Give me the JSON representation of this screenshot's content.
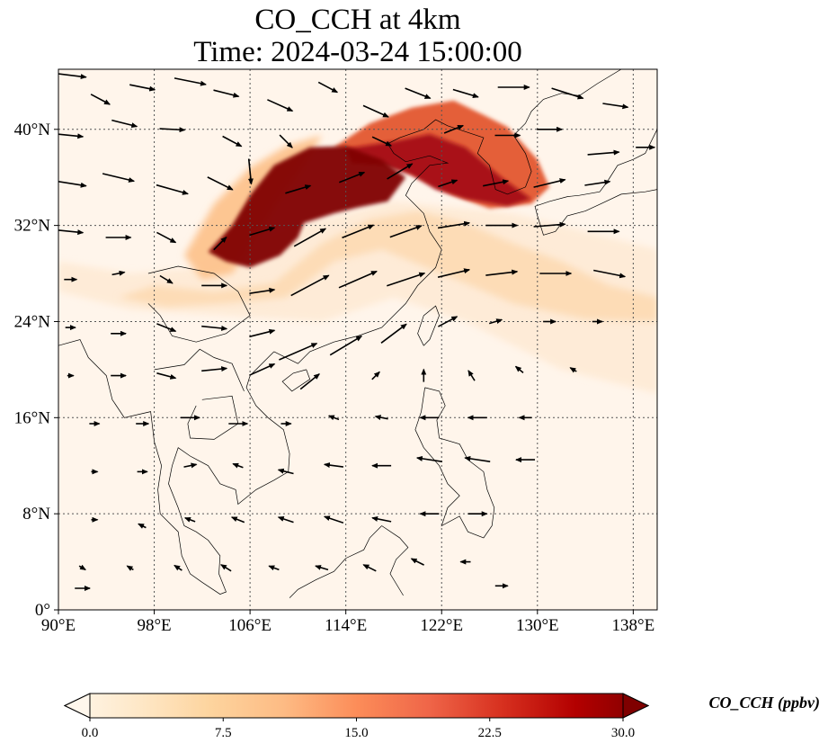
{
  "title": {
    "line1": "CO_CCH at 4km",
    "line2": "Time: 2024-03-24 15:00:00"
  },
  "map": {
    "projection": "PlateCarree",
    "lon_range": [
      90,
      140
    ],
    "lat_range": [
      0,
      45
    ],
    "gridlines": true,
    "x_ticks": [
      {
        "value": 90,
        "label": "90°E"
      },
      {
        "value": 98,
        "label": "98°E"
      },
      {
        "value": 106,
        "label": "106°E"
      },
      {
        "value": 114,
        "label": "114°E"
      },
      {
        "value": 122,
        "label": "122°E"
      },
      {
        "value": 130,
        "label": "130°E"
      },
      {
        "value": 138,
        "label": "138°E"
      }
    ],
    "y_ticks": [
      {
        "value": 0,
        "label": "0°"
      },
      {
        "value": 8,
        "label": "8°N"
      },
      {
        "value": 16,
        "label": "16°N"
      },
      {
        "value": 24,
        "label": "24°N"
      },
      {
        "value": 32,
        "label": "32°N"
      },
      {
        "value": 40,
        "label": "40°N"
      }
    ],
    "background_color": "#fff5eb",
    "plumes": [
      {
        "name": "core-plume",
        "level": 30,
        "color": "#7f0000",
        "polygon": [
          [
            102.5,
            29.8
          ],
          [
            104.5,
            32
          ],
          [
            106,
            34.5
          ],
          [
            108,
            37
          ],
          [
            111,
            38.5
          ],
          [
            114,
            38.6
          ],
          [
            117,
            37.5
          ],
          [
            119,
            36
          ],
          [
            117.5,
            34
          ],
          [
            115,
            33.5
          ],
          [
            113,
            33
          ],
          [
            110.5,
            32.2
          ],
          [
            110,
            31
          ],
          [
            108.5,
            29.5
          ],
          [
            106,
            28.5
          ],
          [
            104,
            29
          ],
          [
            102.5,
            29.8
          ]
        ]
      },
      {
        "name": "east-plume",
        "level": 27,
        "color": "#a50f15",
        "polygon": [
          [
            114,
            38.4
          ],
          [
            118,
            39
          ],
          [
            121,
            39.6
          ],
          [
            124,
            38.5
          ],
          [
            127,
            36
          ],
          [
            129.5,
            34.2
          ],
          [
            127.5,
            33.6
          ],
          [
            124,
            34.2
          ],
          [
            121.5,
            35
          ],
          [
            119.5,
            36.2
          ],
          [
            117,
            37
          ],
          [
            114.5,
            37.2
          ]
        ]
      },
      {
        "name": "north-edge",
        "level": 18,
        "color": "#e3562f",
        "polygon": [
          [
            113,
            38.5
          ],
          [
            116,
            40.5
          ],
          [
            119.5,
            41.8
          ],
          [
            123,
            42.4
          ],
          [
            125.5,
            41.2
          ],
          [
            127.5,
            40.2
          ],
          [
            130,
            37.5
          ],
          [
            131,
            35.2
          ],
          [
            129.5,
            33.8
          ],
          [
            126,
            33.4
          ],
          [
            123,
            34.5
          ],
          [
            119,
            36.5
          ],
          [
            116,
            37.8
          ]
        ]
      },
      {
        "name": "west-halo",
        "level": 9,
        "color": "#fdc38d",
        "polygon": [
          [
            100.5,
            29.5
          ],
          [
            103,
            33.8
          ],
          [
            106,
            36.8
          ],
          [
            109,
            38.6
          ],
          [
            112,
            39.5
          ],
          [
            110.5,
            37
          ],
          [
            108,
            33.5
          ],
          [
            106.5,
            31
          ],
          [
            104.5,
            28
          ],
          [
            102,
            27.5
          ]
        ]
      },
      {
        "name": "south-halo",
        "level": 6,
        "color": "#fdd9b0",
        "polygon": [
          [
            98,
            27
          ],
          [
            103,
            26.5
          ],
          [
            108,
            27.2
          ],
          [
            112,
            30.5
          ],
          [
            116,
            32.5
          ],
          [
            120,
            33.2
          ],
          [
            124,
            32.2
          ],
          [
            128,
            30.5
          ],
          [
            132,
            29
          ],
          [
            136,
            27
          ],
          [
            140,
            26
          ],
          [
            140,
            24
          ],
          [
            134,
            24.2
          ],
          [
            128,
            25.5
          ],
          [
            122,
            28
          ],
          [
            117,
            30
          ],
          [
            113,
            29
          ],
          [
            109,
            26
          ],
          [
            104,
            25.5
          ],
          [
            99,
            25.2
          ],
          [
            95,
            26
          ]
        ]
      },
      {
        "name": "far-haze",
        "level": 3,
        "color": "#feead4",
        "polygon": [
          [
            90,
            29
          ],
          [
            96,
            28
          ],
          [
            102,
            28.5
          ],
          [
            110,
            32
          ],
          [
            118,
            34
          ],
          [
            128,
            33
          ],
          [
            140,
            30
          ],
          [
            140,
            18
          ],
          [
            132,
            20
          ],
          [
            124,
            24
          ],
          [
            118,
            26
          ],
          [
            112,
            24
          ],
          [
            104,
            24.5
          ],
          [
            96,
            25
          ],
          [
            90,
            26.5
          ]
        ]
      }
    ],
    "wind_vectors": [
      {
        "lon": 91.0,
        "lat": 44.5,
        "u": 2.5,
        "v": -0.3
      },
      {
        "lon": 93.5,
        "lat": 42.5,
        "u": 1.5,
        "v": -0.8
      },
      {
        "lon": 97.0,
        "lat": 43.5,
        "u": 2.0,
        "v": -0.4
      },
      {
        "lon": 101.0,
        "lat": 44.0,
        "u": 2.5,
        "v": -0.5
      },
      {
        "lon": 104.0,
        "lat": 43.0,
        "u": 2.0,
        "v": -0.5
      },
      {
        "lon": 108.5,
        "lat": 42.0,
        "u": 2.0,
        "v": -0.9
      },
      {
        "lon": 112.5,
        "lat": 43.5,
        "u": 1.5,
        "v": -0.8
      },
      {
        "lon": 116.5,
        "lat": 41.5,
        "u": 2.0,
        "v": -0.9
      },
      {
        "lon": 120.0,
        "lat": 43.0,
        "u": 2.0,
        "v": -0.8
      },
      {
        "lon": 124.0,
        "lat": 43.0,
        "u": 2.0,
        "v": -0.6
      },
      {
        "lon": 128.0,
        "lat": 43.5,
        "u": 2.5,
        "v": 0.0
      },
      {
        "lon": 132.5,
        "lat": 43.0,
        "u": 2.5,
        "v": -0.8
      },
      {
        "lon": 136.5,
        "lat": 42.0,
        "u": 2.0,
        "v": -0.3
      },
      {
        "lon": 91.0,
        "lat": 39.5,
        "u": 2.0,
        "v": -0.2
      },
      {
        "lon": 95.5,
        "lat": 40.5,
        "u": 2.0,
        "v": -0.5
      },
      {
        "lon": 99.5,
        "lat": 40.0,
        "u": 2.0,
        "v": -0.1
      },
      {
        "lon": 104.5,
        "lat": 39.0,
        "u": 1.5,
        "v": -0.8
      },
      {
        "lon": 109.0,
        "lat": 39.0,
        "u": 1.0,
        "v": -1.0
      },
      {
        "lon": 117.0,
        "lat": 39.0,
        "u": 1.5,
        "v": -0.7
      },
      {
        "lon": 123.0,
        "lat": 40.0,
        "u": 1.5,
        "v": 0.6
      },
      {
        "lon": 127.5,
        "lat": 39.5,
        "u": 2.0,
        "v": 0.0
      },
      {
        "lon": 131.0,
        "lat": 40.0,
        "u": 2.0,
        "v": 0.0
      },
      {
        "lon": 135.5,
        "lat": 38.0,
        "u": 2.5,
        "v": 0.2
      },
      {
        "lon": 139.0,
        "lat": 38.5,
        "u": 1.5,
        "v": 0.0
      },
      {
        "lon": 91.0,
        "lat": 35.5,
        "u": 2.5,
        "v": -0.4
      },
      {
        "lon": 95.0,
        "lat": 36.0,
        "u": 2.5,
        "v": -0.6
      },
      {
        "lon": 99.5,
        "lat": 35.0,
        "u": 2.5,
        "v": -0.7
      },
      {
        "lon": 103.5,
        "lat": 35.5,
        "u": 2.0,
        "v": -1.0
      },
      {
        "lon": 106.0,
        "lat": 36.5,
        "u": 0.2,
        "v": -2.0
      },
      {
        "lon": 110.0,
        "lat": 35.0,
        "u": 2.0,
        "v": 0.6
      },
      {
        "lon": 114.5,
        "lat": 36.0,
        "u": 2.0,
        "v": 0.8
      },
      {
        "lon": 118.5,
        "lat": 36.5,
        "u": 2.0,
        "v": 1.2
      },
      {
        "lon": 122.5,
        "lat": 35.5,
        "u": 1.5,
        "v": 0.5
      },
      {
        "lon": 126.5,
        "lat": 35.5,
        "u": 2.0,
        "v": 0.4
      },
      {
        "lon": 131.0,
        "lat": 35.5,
        "u": 2.5,
        "v": 0.6
      },
      {
        "lon": 135.0,
        "lat": 35.5,
        "u": 2.0,
        "v": 0.3
      },
      {
        "lon": 91.0,
        "lat": 31.5,
        "u": 2.0,
        "v": -0.2
      },
      {
        "lon": 95.0,
        "lat": 31.0,
        "u": 2.0,
        "v": 0.0
      },
      {
        "lon": 99.0,
        "lat": 31.0,
        "u": 1.5,
        "v": -0.8
      },
      {
        "lon": 103.5,
        "lat": 30.5,
        "u": 1.0,
        "v": 1.0
      },
      {
        "lon": 107.0,
        "lat": 31.5,
        "u": 2.0,
        "v": 0.6
      },
      {
        "lon": 111.0,
        "lat": 31.0,
        "u": 2.5,
        "v": 1.4
      },
      {
        "lon": 115.0,
        "lat": 31.5,
        "u": 2.5,
        "v": 1.0
      },
      {
        "lon": 119.0,
        "lat": 31.5,
        "u": 2.5,
        "v": 0.9
      },
      {
        "lon": 123.0,
        "lat": 32.0,
        "u": 2.5,
        "v": 0.4
      },
      {
        "lon": 127.0,
        "lat": 32.0,
        "u": 2.5,
        "v": 0.0
      },
      {
        "lon": 131.0,
        "lat": 32.0,
        "u": 2.5,
        "v": 0.2
      },
      {
        "lon": 135.5,
        "lat": 31.5,
        "u": 2.5,
        "v": 0.0
      },
      {
        "lon": 91.0,
        "lat": 27.5,
        "u": 1.0,
        "v": 0.0
      },
      {
        "lon": 95.0,
        "lat": 28.0,
        "u": 1.0,
        "v": 0.2
      },
      {
        "lon": 99.0,
        "lat": 27.5,
        "u": 1.0,
        "v": -0.6
      },
      {
        "lon": 103.0,
        "lat": 27.0,
        "u": 2.0,
        "v": 0.0
      },
      {
        "lon": 107.0,
        "lat": 26.5,
        "u": 2.0,
        "v": 0.3
      },
      {
        "lon": 111.0,
        "lat": 27.0,
        "u": 3.0,
        "v": 1.6
      },
      {
        "lon": 115.0,
        "lat": 27.5,
        "u": 3.0,
        "v": 1.3
      },
      {
        "lon": 119.0,
        "lat": 27.5,
        "u": 3.0,
        "v": 1.0
      },
      {
        "lon": 123.0,
        "lat": 28.0,
        "u": 2.5,
        "v": 0.6
      },
      {
        "lon": 127.0,
        "lat": 28.0,
        "u": 2.5,
        "v": 0.3
      },
      {
        "lon": 131.5,
        "lat": 28.0,
        "u": 2.5,
        "v": 0.0
      },
      {
        "lon": 136.0,
        "lat": 28.0,
        "u": 2.5,
        "v": -0.5
      },
      {
        "lon": 91.0,
        "lat": 23.5,
        "u": 0.8,
        "v": 0.0
      },
      {
        "lon": 95.0,
        "lat": 23.0,
        "u": 1.2,
        "v": 0.0
      },
      {
        "lon": 99.0,
        "lat": 23.5,
        "u": 1.5,
        "v": -0.6
      },
      {
        "lon": 103.0,
        "lat": 23.5,
        "u": 2.0,
        "v": -0.2
      },
      {
        "lon": 107.0,
        "lat": 23.0,
        "u": 2.0,
        "v": 0.5
      },
      {
        "lon": 110.0,
        "lat": 21.5,
        "u": 3.0,
        "v": 1.3
      },
      {
        "lon": 114.0,
        "lat": 22.0,
        "u": 2.5,
        "v": 1.5
      },
      {
        "lon": 118.0,
        "lat": 23.0,
        "u": 2.0,
        "v": 1.5
      },
      {
        "lon": 122.5,
        "lat": 24.0,
        "u": 1.5,
        "v": 0.8
      },
      {
        "lon": 126.5,
        "lat": 24.0,
        "u": 1.0,
        "v": 0.3
      },
      {
        "lon": 131.0,
        "lat": 24.0,
        "u": 1.0,
        "v": 0.0
      },
      {
        "lon": 135.0,
        "lat": 24.0,
        "u": 0.8,
        "v": 0.0
      },
      {
        "lon": 91.0,
        "lat": 19.5,
        "u": 0.5,
        "v": 0.0
      },
      {
        "lon": 95.0,
        "lat": 19.5,
        "u": 1.2,
        "v": 0.0
      },
      {
        "lon": 99.0,
        "lat": 19.5,
        "u": 1.5,
        "v": -0.4
      },
      {
        "lon": 103.0,
        "lat": 20.0,
        "u": 2.0,
        "v": 0.2
      },
      {
        "lon": 107.0,
        "lat": 20.0,
        "u": 2.0,
        "v": 0.9
      },
      {
        "lon": 111.0,
        "lat": 19.0,
        "u": 1.5,
        "v": 1.2
      },
      {
        "lon": 116.5,
        "lat": 19.5,
        "u": 0.6,
        "v": 0.6
      },
      {
        "lon": 120.5,
        "lat": 19.5,
        "u": 0.0,
        "v": 1.0
      },
      {
        "lon": 124.5,
        "lat": 19.5,
        "u": -0.5,
        "v": 0.8
      },
      {
        "lon": 128.5,
        "lat": 20.0,
        "u": -0.6,
        "v": 0.5
      },
      {
        "lon": 133.0,
        "lat": 20.0,
        "u": -0.5,
        "v": 0.3
      },
      {
        "lon": 93.0,
        "lat": 15.5,
        "u": 0.8,
        "v": 0.0
      },
      {
        "lon": 97.0,
        "lat": 15.5,
        "u": 1.0,
        "v": 0.0
      },
      {
        "lon": 101.0,
        "lat": 16.0,
        "u": 1.5,
        "v": 0.0
      },
      {
        "lon": 105.0,
        "lat": 15.5,
        "u": 1.5,
        "v": 0.0
      },
      {
        "lon": 109.0,
        "lat": 15.5,
        "u": 0.8,
        "v": 0.0
      },
      {
        "lon": 113.0,
        "lat": 16.0,
        "u": -0.8,
        "v": 0.3
      },
      {
        "lon": 117.0,
        "lat": 16.0,
        "u": -1.0,
        "v": 0.2
      },
      {
        "lon": 121.0,
        "lat": 16.0,
        "u": -1.5,
        "v": 0.0
      },
      {
        "lon": 125.0,
        "lat": 16.0,
        "u": -1.5,
        "v": 0.0
      },
      {
        "lon": 129.0,
        "lat": 16.0,
        "u": -1.0,
        "v": 0.0
      },
      {
        "lon": 93.0,
        "lat": 11.5,
        "u": 0.5,
        "v": 0.0
      },
      {
        "lon": 97.0,
        "lat": 11.5,
        "u": 0.8,
        "v": 0.0
      },
      {
        "lon": 101.0,
        "lat": 12.0,
        "u": 1.0,
        "v": 0.2
      },
      {
        "lon": 105.0,
        "lat": 12.0,
        "u": -0.8,
        "v": 0.3
      },
      {
        "lon": 109.0,
        "lat": 11.5,
        "u": -1.2,
        "v": 0.3
      },
      {
        "lon": 113.0,
        "lat": 12.0,
        "u": -1.5,
        "v": 0.2
      },
      {
        "lon": 117.0,
        "lat": 12.0,
        "u": -1.5,
        "v": 0.0
      },
      {
        "lon": 121.0,
        "lat": 12.5,
        "u": -2.0,
        "v": 0.3
      },
      {
        "lon": 125.0,
        "lat": 12.5,
        "u": -2.0,
        "v": 0.3
      },
      {
        "lon": 129.0,
        "lat": 12.5,
        "u": -1.5,
        "v": 0.0
      },
      {
        "lon": 93.0,
        "lat": 7.5,
        "u": 0.5,
        "v": 0.0
      },
      {
        "lon": 97.0,
        "lat": 7.0,
        "u": -0.6,
        "v": 0.3
      },
      {
        "lon": 101.0,
        "lat": 7.5,
        "u": -0.8,
        "v": 0.3
      },
      {
        "lon": 105.0,
        "lat": 7.5,
        "u": -1.0,
        "v": 0.4
      },
      {
        "lon": 109.0,
        "lat": 7.5,
        "u": -1.2,
        "v": 0.4
      },
      {
        "lon": 113.0,
        "lat": 7.5,
        "u": -1.5,
        "v": 0.5
      },
      {
        "lon": 117.0,
        "lat": 7.5,
        "u": -1.5,
        "v": 0.3
      },
      {
        "lon": 121.0,
        "lat": 8.0,
        "u": -1.5,
        "v": 0.0
      },
      {
        "lon": 125.0,
        "lat": 8.0,
        "u": 1.5,
        "v": 0.0
      },
      {
        "lon": 92.0,
        "lat": 3.5,
        "u": 0.5,
        "v": -0.3
      },
      {
        "lon": 96.0,
        "lat": 3.5,
        "u": -0.5,
        "v": 0.3
      },
      {
        "lon": 100.0,
        "lat": 3.5,
        "u": -0.6,
        "v": 0.4
      },
      {
        "lon": 104.0,
        "lat": 3.5,
        "u": -0.8,
        "v": 0.5
      },
      {
        "lon": 108.0,
        "lat": 3.5,
        "u": -0.8,
        "v": 0.3
      },
      {
        "lon": 112.0,
        "lat": 3.5,
        "u": -1.0,
        "v": 0.3
      },
      {
        "lon": 116.0,
        "lat": 3.5,
        "u": -1.0,
        "v": 0.5
      },
      {
        "lon": 120.0,
        "lat": 4.0,
        "u": -1.0,
        "v": 0.5
      },
      {
        "lon": 124.0,
        "lat": 4.0,
        "u": -0.8,
        "v": 0.0
      },
      {
        "lon": 92.0,
        "lat": 1.8,
        "u": 1.2,
        "v": 0.0
      },
      {
        "lon": 127.0,
        "lat": 2.0,
        "u": 1.0,
        "v": 0.0
      }
    ]
  },
  "colorbar": {
    "label": "CO_CCH (ppbv)",
    "min": 0.0,
    "max": 30.0,
    "extend": "both",
    "ticks": [
      {
        "value": 0.0,
        "label": "0.0"
      },
      {
        "value": 7.5,
        "label": "7.5"
      },
      {
        "value": 15.0,
        "label": "15.0"
      },
      {
        "value": 22.5,
        "label": "22.5"
      },
      {
        "value": 30.0,
        "label": "30.0"
      }
    ],
    "colormap": "OrRd",
    "colors": [
      "#fff7ec",
      "#fee8c8",
      "#fdd49e",
      "#fdbb84",
      "#fc8d59",
      "#ef6548",
      "#d7301f",
      "#b30000",
      "#7f0000"
    ]
  }
}
